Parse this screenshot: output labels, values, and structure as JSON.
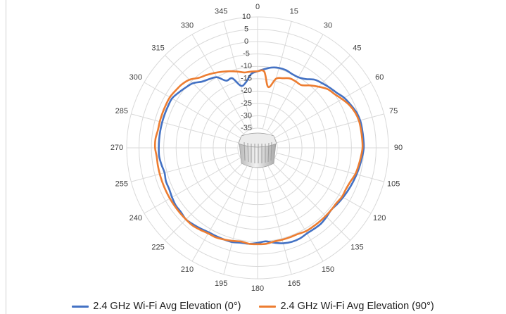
{
  "chart_data": {
    "type": "polar-line",
    "angle_labels": [
      "0",
      "15",
      "30",
      "45",
      "60",
      "75",
      "90",
      "105",
      "120",
      "135",
      "150",
      "165",
      "180",
      "195",
      "210",
      "225",
      "240",
      "255",
      "270",
      "285",
      "300",
      "315",
      "330",
      "345"
    ],
    "radial_labels": [
      "10",
      "5",
      "0",
      "-5",
      "-10",
      "-15",
      "-20",
      "-25",
      "-30",
      "-35"
    ],
    "r_range": [
      -35,
      10
    ],
    "grid": true,
    "legend_position": "bottom",
    "series": [
      {
        "name": "2.4 GHz Wi-Fi Avg Elevation (0°)",
        "color": "#4472c4",
        "points": [
          [
            0,
            -12
          ],
          [
            5,
            -11
          ],
          [
            10,
            -10
          ],
          [
            15,
            -9.5
          ],
          [
            20,
            -9.5
          ],
          [
            25,
            -10
          ],
          [
            30,
            -10
          ],
          [
            35,
            -9
          ],
          [
            40,
            -7
          ],
          [
            45,
            -6
          ],
          [
            50,
            -5
          ],
          [
            55,
            -4
          ],
          [
            60,
            -2.5
          ],
          [
            65,
            -1.5
          ],
          [
            70,
            -0.5
          ],
          [
            75,
            0
          ],
          [
            80,
            0
          ],
          [
            85,
            0
          ],
          [
            90,
            0
          ],
          [
            95,
            -0.5
          ],
          [
            100,
            -1
          ],
          [
            105,
            -1.5
          ],
          [
            110,
            -2
          ],
          [
            115,
            -2.5
          ],
          [
            120,
            -3
          ],
          [
            125,
            -3.5
          ],
          [
            130,
            -4
          ],
          [
            135,
            -3.5
          ],
          [
            140,
            -3
          ],
          [
            145,
            -3
          ],
          [
            150,
            -3
          ],
          [
            155,
            -2.5
          ],
          [
            160,
            -2.5
          ],
          [
            165,
            -3
          ],
          [
            170,
            -4
          ],
          [
            175,
            -5
          ],
          [
            180,
            -4.5
          ],
          [
            185,
            -4
          ],
          [
            190,
            -4
          ],
          [
            195,
            -3.5
          ],
          [
            200,
            -3.5
          ],
          [
            205,
            -3.5
          ],
          [
            210,
            -3.5
          ],
          [
            215,
            -3
          ],
          [
            220,
            -2.5
          ],
          [
            225,
            -2
          ],
          [
            230,
            -2.5
          ],
          [
            235,
            -2.5
          ],
          [
            240,
            -3
          ],
          [
            245,
            -3.5
          ],
          [
            250,
            -3.5
          ],
          [
            255,
            -4
          ],
          [
            260,
            -3.5
          ],
          [
            265,
            -3
          ],
          [
            270,
            -3
          ],
          [
            275,
            -3
          ],
          [
            280,
            -3
          ],
          [
            285,
            -3
          ],
          [
            290,
            -3
          ],
          [
            295,
            -3
          ],
          [
            300,
            -3
          ],
          [
            305,
            -4
          ],
          [
            310,
            -5
          ],
          [
            315,
            -6
          ],
          [
            320,
            -8
          ],
          [
            325,
            -9
          ],
          [
            330,
            -10
          ],
          [
            335,
            -13
          ],
          [
            340,
            -13
          ],
          [
            345,
            -17
          ],
          [
            350,
            -16
          ],
          [
            355,
            -13
          ]
        ]
      },
      {
        "name": "2.4 GHz Wi-Fi Avg Elevation (90°)",
        "color": "#ed7d31",
        "points": [
          [
            0,
            -12
          ],
          [
            5,
            -12
          ],
          [
            10,
            -18
          ],
          [
            15,
            -14
          ],
          [
            20,
            -13
          ],
          [
            25,
            -12
          ],
          [
            30,
            -12
          ],
          [
            35,
            -12
          ],
          [
            40,
            -10
          ],
          [
            45,
            -8
          ],
          [
            50,
            -6
          ],
          [
            55,
            -5
          ],
          [
            60,
            -3.5
          ],
          [
            65,
            -2
          ],
          [
            70,
            -1
          ],
          [
            75,
            -0.5
          ],
          [
            80,
            -0.5
          ],
          [
            85,
            -0.5
          ],
          [
            90,
            -0.5
          ],
          [
            95,
            -1
          ],
          [
            100,
            -1.5
          ],
          [
            105,
            -2
          ],
          [
            110,
            -3
          ],
          [
            115,
            -3.5
          ],
          [
            120,
            -3.5
          ],
          [
            125,
            -4
          ],
          [
            130,
            -4
          ],
          [
            135,
            -4
          ],
          [
            140,
            -4
          ],
          [
            145,
            -4
          ],
          [
            150,
            -4
          ],
          [
            155,
            -4.5
          ],
          [
            160,
            -4.5
          ],
          [
            165,
            -4.5
          ],
          [
            170,
            -4.5
          ],
          [
            175,
            -4
          ],
          [
            180,
            -4
          ],
          [
            185,
            -4
          ],
          [
            190,
            -4.5
          ],
          [
            195,
            -4
          ],
          [
            200,
            -3.5
          ],
          [
            205,
            -3
          ],
          [
            210,
            -3
          ],
          [
            215,
            -2.5
          ],
          [
            220,
            -2
          ],
          [
            225,
            -2
          ],
          [
            230,
            -2
          ],
          [
            235,
            -2
          ],
          [
            240,
            -2
          ],
          [
            245,
            -2
          ],
          [
            250,
            -2
          ],
          [
            255,
            -2
          ],
          [
            260,
            -2
          ],
          [
            265,
            -2
          ],
          [
            270,
            -1.5
          ],
          [
            275,
            -1.5
          ],
          [
            280,
            -2
          ],
          [
            285,
            -2
          ],
          [
            290,
            -2
          ],
          [
            295,
            -2
          ],
          [
            300,
            -2
          ],
          [
            305,
            -2.5
          ],
          [
            310,
            -3
          ],
          [
            315,
            -4
          ],
          [
            320,
            -6
          ],
          [
            325,
            -7
          ],
          [
            330,
            -8
          ],
          [
            335,
            -9
          ],
          [
            340,
            -10
          ],
          [
            345,
            -11
          ],
          [
            350,
            -12
          ],
          [
            355,
            -12
          ]
        ]
      }
    ]
  }
}
